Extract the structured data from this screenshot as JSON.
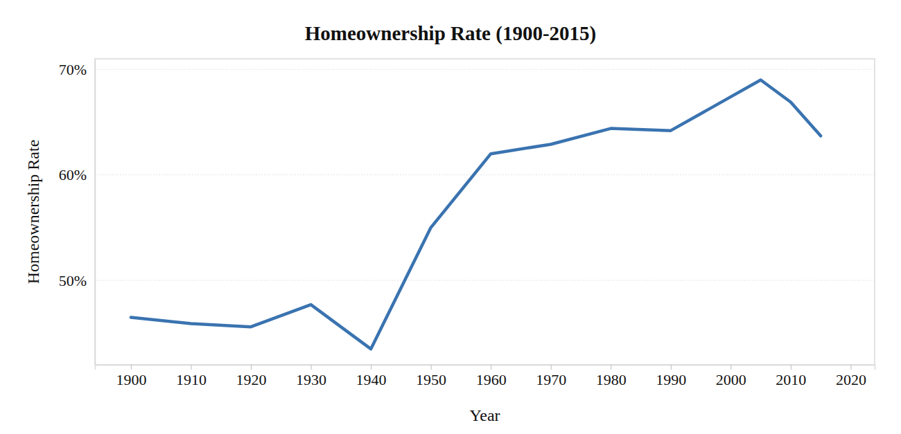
{
  "chart_data": {
    "type": "line",
    "title": "Homeownership Rate (1900-2015)",
    "x_label": "Year",
    "y_label": "Homeownership Rate",
    "x": [
      1900,
      1910,
      1920,
      1930,
      1940,
      1950,
      1960,
      1970,
      1980,
      1990,
      2000,
      2005,
      2010,
      2015
    ],
    "values": [
      46.5,
      45.9,
      45.6,
      47.7,
      43.5,
      55.0,
      62.0,
      62.9,
      64.4,
      64.2,
      67.4,
      69.0,
      66.9,
      63.7
    ],
    "color": "#3a73b0",
    "xlim": [
      1894,
      2024
    ],
    "xticks": [
      1900,
      1910,
      1920,
      1930,
      1940,
      1950,
      1960,
      1970,
      1980,
      1990,
      2000,
      2010,
      2020
    ],
    "ylim": [
      42,
      71
    ],
    "yticks": [
      {
        "value": 50,
        "label": "50%"
      },
      {
        "value": 60,
        "label": "60%"
      },
      {
        "value": 70,
        "label": "70%"
      }
    ],
    "grid": true
  }
}
